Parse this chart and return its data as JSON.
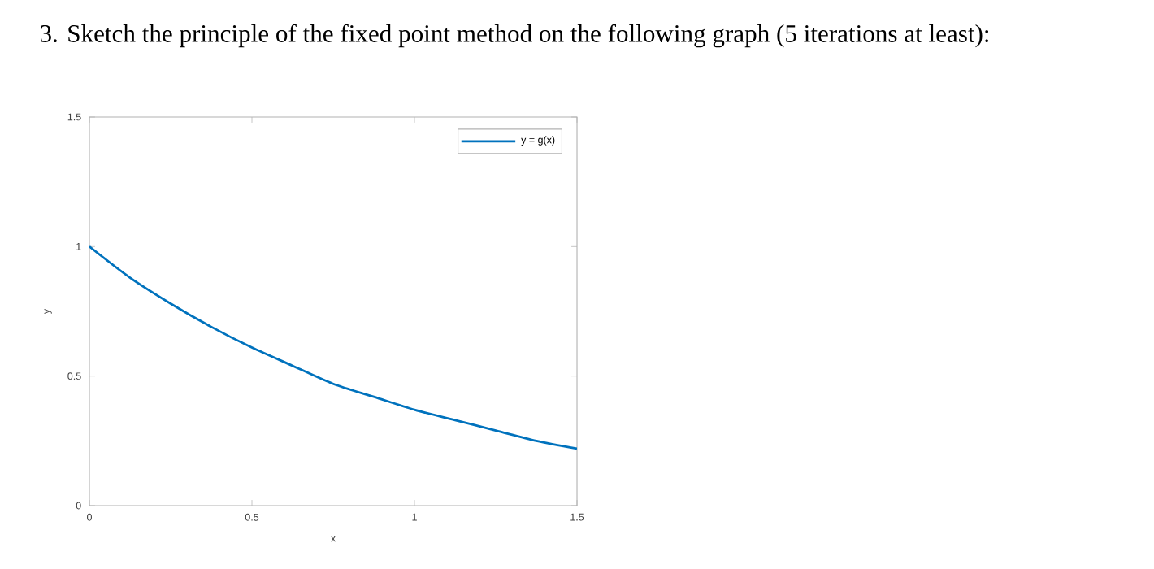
{
  "chart_data": {
    "type": "line",
    "title": "3. Sketch the principle of the fixed point method on the following graph (5 iterations at least):",
    "xlabel": "x",
    "ylabel": "y",
    "x": [
      0,
      0.125,
      0.25,
      0.375,
      0.5,
      0.625,
      0.75,
      0.875,
      1,
      1.125,
      1.25,
      1.375,
      1.5
    ],
    "series": [
      {
        "name": "y = g(x)",
        "color": "#0072bd",
        "values": [
          1,
          0.88,
          0.78,
          0.69,
          0.61,
          0.54,
          0.47,
          0.42,
          0.37,
          0.33,
          0.29,
          0.25,
          0.22
        ]
      }
    ],
    "xlim": [
      0,
      1.5
    ],
    "ylim": [
      0,
      1.5
    ],
    "xticks": [
      0,
      0.5,
      1,
      1.5
    ],
    "yticks": [
      0,
      0.5,
      1,
      1.5
    ],
    "legend": "top right",
    "marker": "none",
    "line_style": "solid"
  }
}
